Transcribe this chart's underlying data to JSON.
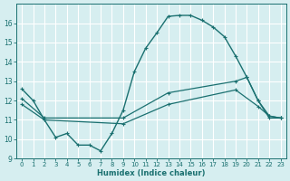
{
  "xlabel": "Humidex (Indice chaleur)",
  "bg_color": "#d6eef0",
  "grid_color": "#ffffff",
  "line_color": "#1a7070",
  "xlim": [
    -0.5,
    23.5
  ],
  "ylim": [
    9,
    17
  ],
  "yticks": [
    9,
    10,
    11,
    12,
    13,
    14,
    15,
    16
  ],
  "xticks": [
    0,
    1,
    2,
    3,
    4,
    5,
    6,
    7,
    8,
    9,
    10,
    11,
    12,
    13,
    14,
    15,
    16,
    17,
    18,
    19,
    20,
    21,
    22,
    23
  ],
  "series1_x": [
    0,
    1,
    2,
    3,
    4,
    5,
    6,
    7,
    8,
    9,
    10,
    11,
    12,
    13,
    14,
    15,
    16,
    17,
    18,
    19,
    20,
    21,
    22,
    23
  ],
  "series1_y": [
    12.6,
    12.0,
    11.0,
    10.1,
    10.3,
    9.7,
    9.7,
    9.4,
    10.3,
    11.5,
    13.5,
    14.7,
    15.5,
    16.35,
    16.4,
    16.4,
    16.15,
    15.8,
    15.3,
    14.3,
    13.2,
    12.0,
    11.1,
    11.1
  ],
  "series2_x": [
    0,
    2,
    9,
    13,
    19,
    20,
    21,
    22,
    23
  ],
  "series2_y": [
    12.1,
    11.1,
    11.1,
    12.4,
    13.0,
    13.2,
    12.0,
    11.2,
    11.1
  ],
  "series3_x": [
    0,
    2,
    9,
    13,
    19,
    21,
    22,
    23
  ],
  "series3_y": [
    11.8,
    11.0,
    10.8,
    11.8,
    12.55,
    11.7,
    11.2,
    11.1
  ]
}
